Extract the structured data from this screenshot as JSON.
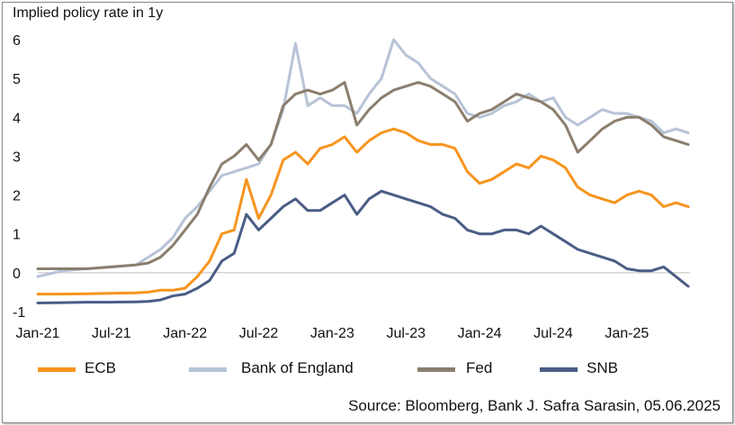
{
  "chart_data": {
    "type": "line",
    "ylabel": "Implied policy rate in 1y",
    "ylim": [
      -1,
      6
    ],
    "yticks": [
      "-1",
      "0",
      "1",
      "2",
      "3",
      "4",
      "5",
      "6"
    ],
    "xticks": [
      "Jan-21",
      "Jul-21",
      "Jan-22",
      "Jul-22",
      "Jan-23",
      "Jul-23",
      "Jan-24",
      "Jul-24",
      "Jan-25"
    ],
    "x_range": [
      "2021-01",
      "2025-06"
    ],
    "grid": false,
    "legend_position": "bottom",
    "source": "Source: Bloomberg, Bank J. Safra Sarasin, 05.06.2025",
    "x": [
      "2021-01",
      "2021-03",
      "2021-05",
      "2021-07",
      "2021-09",
      "2021-10",
      "2021-11",
      "2021-12",
      "2022-01",
      "2022-02",
      "2022-03",
      "2022-04",
      "2022-05",
      "2022-06",
      "2022-07",
      "2022-08",
      "2022-09",
      "2022-10",
      "2022-11",
      "2022-12",
      "2023-01",
      "2023-02",
      "2023-03",
      "2023-04",
      "2023-05",
      "2023-06",
      "2023-07",
      "2023-08",
      "2023-09",
      "2023-10",
      "2023-11",
      "2023-12",
      "2024-01",
      "2024-02",
      "2024-03",
      "2024-04",
      "2024-05",
      "2024-06",
      "2024-07",
      "2024-08",
      "2024-09",
      "2024-10",
      "2024-11",
      "2024-12",
      "2025-01",
      "2025-02",
      "2025-03",
      "2025-04",
      "2025-05",
      "2025-06"
    ],
    "series": [
      {
        "name": "ECB",
        "color": "#F7941D",
        "values": [
          -0.55,
          -0.55,
          -0.54,
          -0.53,
          -0.52,
          -0.5,
          -0.45,
          -0.45,
          -0.4,
          -0.1,
          0.3,
          1.0,
          1.1,
          2.4,
          1.4,
          2.0,
          2.9,
          3.1,
          2.8,
          3.2,
          3.3,
          3.5,
          3.1,
          3.4,
          3.6,
          3.7,
          3.6,
          3.4,
          3.3,
          3.3,
          3.2,
          2.6,
          2.3,
          2.4,
          2.6,
          2.8,
          2.7,
          3.0,
          2.9,
          2.7,
          2.2,
          2.0,
          1.9,
          1.8,
          2.0,
          2.1,
          2.0,
          1.7,
          1.8,
          1.7
        ]
      },
      {
        "name": "Bank of England",
        "color": "#B7C3D6",
        "values": [
          -0.1,
          0.05,
          0.1,
          0.15,
          0.2,
          0.4,
          0.6,
          0.9,
          1.4,
          1.7,
          2.1,
          2.5,
          2.6,
          2.7,
          2.8,
          3.3,
          4.2,
          5.9,
          4.3,
          4.5,
          4.3,
          4.3,
          4.1,
          4.6,
          5.0,
          6.0,
          5.6,
          5.4,
          5.0,
          4.8,
          4.6,
          4.1,
          4.0,
          4.1,
          4.3,
          4.4,
          4.6,
          4.4,
          4.5,
          4.0,
          3.8,
          4.0,
          4.2,
          4.1,
          4.1,
          4.0,
          3.9,
          3.6,
          3.7,
          3.6
        ]
      },
      {
        "name": "Fed",
        "color": "#8B7E6E",
        "values": [
          0.1,
          0.1,
          0.1,
          0.15,
          0.2,
          0.25,
          0.4,
          0.7,
          1.1,
          1.5,
          2.2,
          2.8,
          3.0,
          3.3,
          2.9,
          3.3,
          4.3,
          4.6,
          4.7,
          4.6,
          4.7,
          4.9,
          3.8,
          4.2,
          4.5,
          4.7,
          4.8,
          4.9,
          4.8,
          4.6,
          4.4,
          3.9,
          4.1,
          4.2,
          4.4,
          4.6,
          4.5,
          4.4,
          4.2,
          3.8,
          3.1,
          3.4,
          3.7,
          3.9,
          4.0,
          4.0,
          3.8,
          3.5,
          3.4,
          3.3
        ]
      },
      {
        "name": "SNB",
        "color": "#4A5D86",
        "values": [
          -0.78,
          -0.77,
          -0.76,
          -0.76,
          -0.75,
          -0.74,
          -0.7,
          -0.6,
          -0.55,
          -0.4,
          -0.2,
          0.3,
          0.5,
          1.5,
          1.1,
          1.4,
          1.7,
          1.9,
          1.6,
          1.6,
          1.8,
          2.0,
          1.5,
          1.9,
          2.1,
          2.0,
          1.9,
          1.8,
          1.7,
          1.5,
          1.4,
          1.1,
          1.0,
          1.0,
          1.1,
          1.1,
          1.0,
          1.2,
          1.0,
          0.8,
          0.6,
          0.5,
          0.4,
          0.3,
          0.1,
          0.05,
          0.05,
          0.15,
          -0.1,
          -0.35
        ]
      }
    ]
  }
}
